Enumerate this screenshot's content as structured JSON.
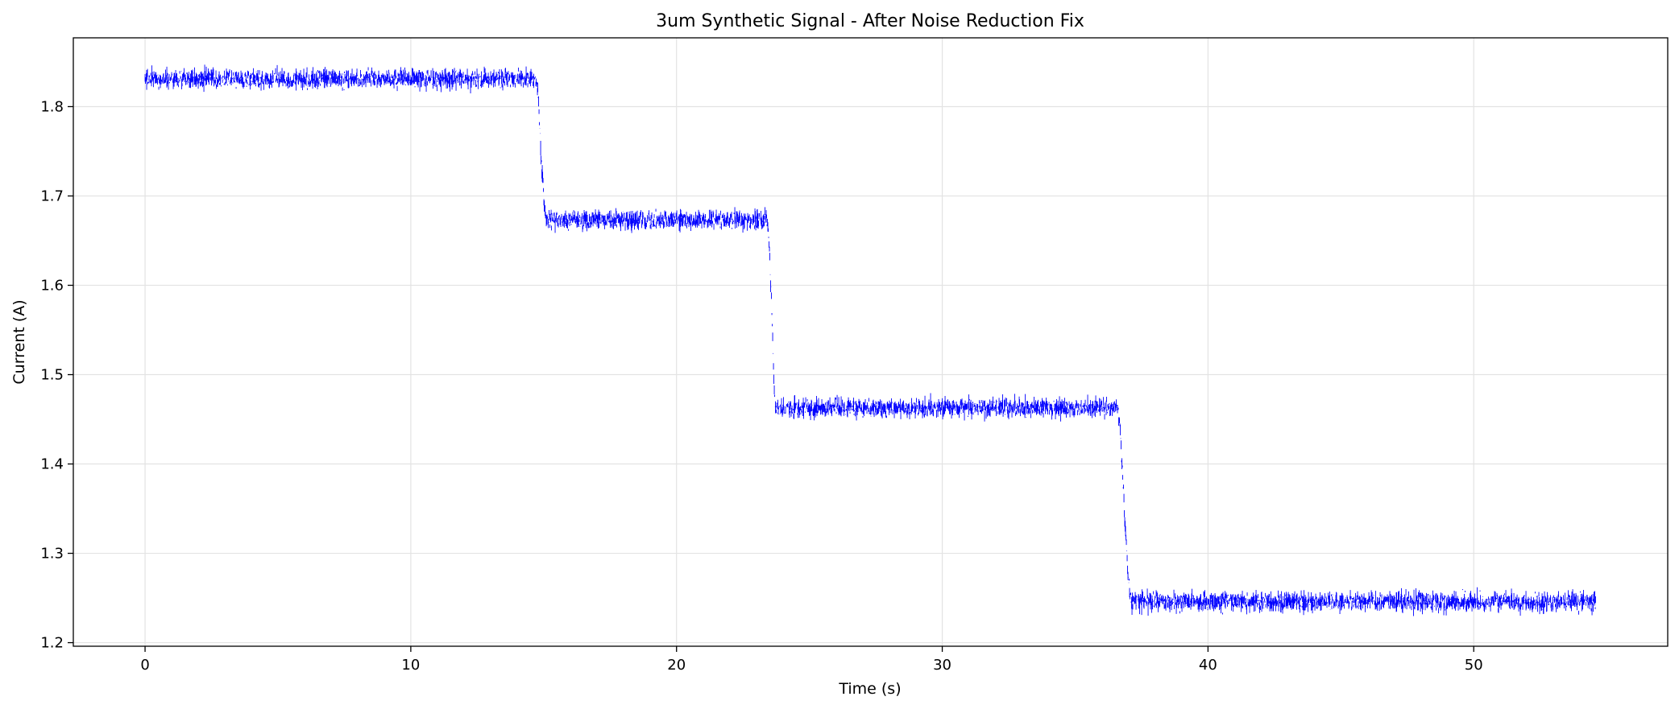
{
  "chart_data": {
    "type": "line",
    "title": "3um Synthetic Signal - After Noise Reduction Fix",
    "xlabel": "Time (s)",
    "ylabel": "Current (A)",
    "xlim": [
      -2.7,
      57.3
    ],
    "ylim": [
      1.196,
      1.877
    ],
    "x_ticks": [
      0,
      10,
      20,
      30,
      40,
      50
    ],
    "y_ticks": [
      1.2,
      1.3,
      1.4,
      1.5,
      1.6,
      1.7,
      1.8
    ],
    "grid": true,
    "legend": null,
    "series": [
      {
        "color": "#0000ff",
        "noise_amplitude": 0.01,
        "x": [
          0.0,
          14.7,
          14.8,
          14.9,
          15.0,
          15.1,
          23.4,
          23.5,
          23.6,
          23.7,
          36.6,
          36.7,
          36.8,
          36.9,
          37.0,
          37.1,
          54.6
        ],
        "y": [
          1.831,
          1.831,
          1.812,
          1.745,
          1.7,
          1.673,
          1.673,
          1.64,
          1.56,
          1.463,
          1.463,
          1.44,
          1.38,
          1.32,
          1.27,
          1.246,
          1.246
        ]
      }
    ]
  }
}
